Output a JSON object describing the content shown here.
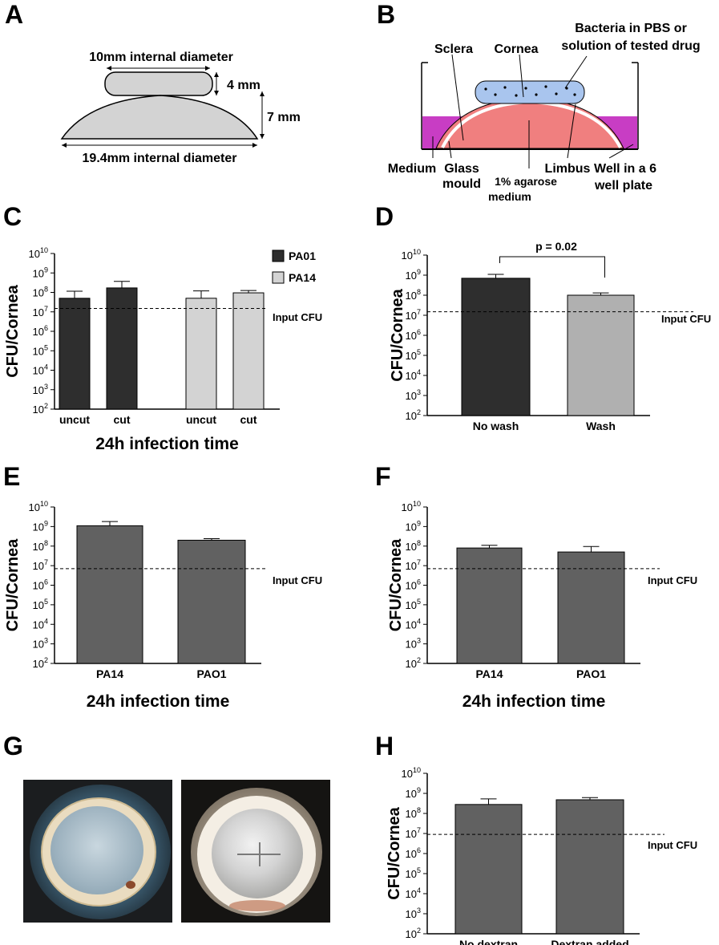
{
  "panels": {
    "A": {
      "letter": "A",
      "top_label": "10mm internal diameter",
      "height_small": "4 mm",
      "height_large": "7 mm",
      "bottom_label": "19.4mm internal diameter"
    },
    "B": {
      "letter": "B",
      "sclera": "Sclera",
      "cornea": "Cornea",
      "bacteria_line1": "Bacteria in PBS or",
      "bacteria_line2": "solution of tested drug",
      "medium": "Medium",
      "glass_line1": "Glass",
      "glass_line2": "mould",
      "agarose_line1": "1% agarose",
      "agarose_line2": "medium",
      "limbus": "Limbus",
      "well_line1": "Well in a 6",
      "well_line2": "well plate"
    },
    "G": {
      "letter": "G"
    }
  },
  "colors": {
    "dark_bar": "#2e2e2e",
    "light_bar": "#d3d3d3",
    "mid_bar": "#b0b0b0",
    "grey_bar": "#616161",
    "mould_fill": "#d3d3d3",
    "cornea_fill": "#f07f7f",
    "medium_fill": "#c83dc4",
    "drop_fill": "#a9c5ee"
  },
  "chart_data": [
    {
      "panel": "C",
      "type": "bar",
      "ylabel": "CFU/Cornea",
      "xlabel": "24h infection time",
      "yscale": "log",
      "ylim": [
        100,
        10000000000
      ],
      "yticks": [
        "10^2",
        "10^3",
        "10^4",
        "10^5",
        "10^6",
        "10^7",
        "10^8",
        "10^9",
        "10^10"
      ],
      "categories": [
        "uncut",
        "cut",
        "uncut",
        "cut"
      ],
      "values": [
        50000000,
        170000000,
        50000000,
        95000000
      ],
      "errors": [
        115000000,
        370000000,
        120000000,
        125000000
      ],
      "bar_series": [
        "PA01",
        "PA01",
        "PA14",
        "PA14"
      ],
      "legend": [
        {
          "name": "PA01",
          "color": "#2e2e2e"
        },
        {
          "name": "PA14",
          "color": "#d3d3d3"
        }
      ],
      "legend_position": "top-right",
      "reference_line": {
        "value": 15000000,
        "label": "Input CFU"
      }
    },
    {
      "panel": "D",
      "type": "bar",
      "ylabel": "CFU/Cornea",
      "xlabel": "",
      "yscale": "log",
      "ylim": [
        100,
        10000000000
      ],
      "yticks": [
        "10^2",
        "10^3",
        "10^4",
        "10^5",
        "10^6",
        "10^7",
        "10^8",
        "10^9",
        "10^10"
      ],
      "categories": [
        "No wash",
        "Wash"
      ],
      "values": [
        700000000,
        100000000
      ],
      "errors": [
        1100000000,
        130000000
      ],
      "bar_colors": [
        "#2e2e2e",
        "#b0b0b0"
      ],
      "reference_line": {
        "value": 15000000,
        "label": "Input CFU"
      },
      "significance": {
        "label": "p = 0.02",
        "between": [
          0,
          1
        ]
      }
    },
    {
      "panel": "E",
      "type": "bar",
      "ylabel": "CFU/Cornea",
      "xlabel": "24h infection time",
      "yscale": "log",
      "ylim": [
        100,
        10000000000
      ],
      "yticks": [
        "10^2",
        "10^3",
        "10^4",
        "10^5",
        "10^6",
        "10^7",
        "10^8",
        "10^9",
        "10^10"
      ],
      "categories": [
        "PA14",
        "PAO1"
      ],
      "values": [
        1100000000,
        200000000
      ],
      "errors": [
        1800000000,
        240000000
      ],
      "bar_colors": [
        "#616161",
        "#616161"
      ],
      "reference_line": {
        "value": 7000000,
        "label": "Input CFU"
      }
    },
    {
      "panel": "F",
      "type": "bar",
      "ylabel": "CFU/Cornea",
      "xlabel": "24h infection time",
      "yscale": "log",
      "ylim": [
        100,
        10000000000
      ],
      "yticks": [
        "10^2",
        "10^3",
        "10^4",
        "10^5",
        "10^6",
        "10^7",
        "10^8",
        "10^9",
        "10^10"
      ],
      "categories": [
        "PA14",
        "PAO1"
      ],
      "values": [
        80000000,
        50000000
      ],
      "errors": [
        110000000,
        95000000
      ],
      "bar_colors": [
        "#616161",
        "#616161"
      ],
      "reference_line": {
        "value": 7000000,
        "label": "Input CFU"
      }
    },
    {
      "panel": "H",
      "type": "bar",
      "ylabel": "CFU/Cornea",
      "xlabel": "",
      "yscale": "log",
      "ylim": [
        100,
        10000000000
      ],
      "yticks": [
        "10^2",
        "10^3",
        "10^4",
        "10^5",
        "10^6",
        "10^7",
        "10^8",
        "10^9",
        "10^10"
      ],
      "categories": [
        "No dextran",
        "Dextran added"
      ],
      "values": [
        280000000,
        480000000
      ],
      "errors": [
        530000000,
        620000000
      ],
      "bar_colors": [
        "#616161",
        "#616161"
      ],
      "reference_line": {
        "value": 9000000,
        "label": "Input CFU"
      }
    }
  ]
}
